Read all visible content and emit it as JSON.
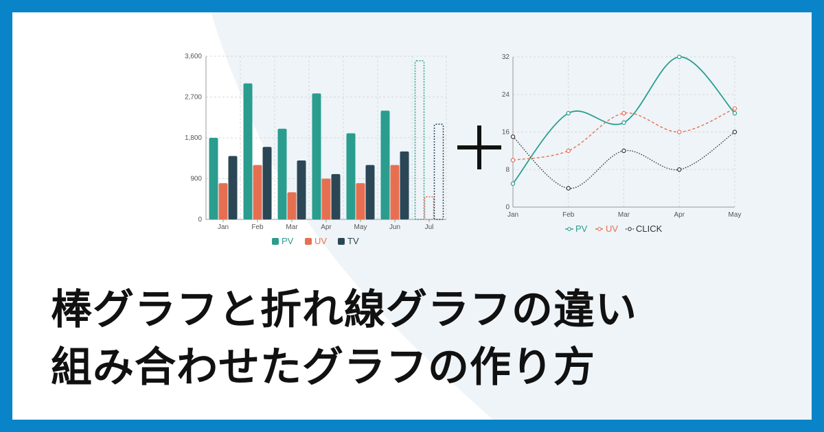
{
  "colors": {
    "frame": "#0a84c8",
    "background_tint": "#eef4f8",
    "pv": "#2a9d8f",
    "uv": "#e76f51",
    "tv": "#2b4756",
    "click": "#333333"
  },
  "headline": {
    "line1": "棒グラフと折れ線グラフの違い",
    "line2": "組み合わせたグラフの作り方"
  },
  "plus_symbol": "plus-icon",
  "chart_data": [
    {
      "type": "bar",
      "categories": [
        "Jan",
        "Feb",
        "Mar",
        "Apr",
        "May",
        "Jun",
        "Jul"
      ],
      "ylim": [
        0,
        3600
      ],
      "yticks": [
        "0",
        "900",
        "1,800",
        "2,700",
        "3,600"
      ],
      "grid": true,
      "legend_position": "bottom",
      "series": [
        {
          "name": "PV",
          "color": "#2a9d8f",
          "values": [
            1800,
            3000,
            2000,
            2780,
            1900,
            2400,
            3500
          ],
          "dashed_last": true
        },
        {
          "name": "UV",
          "color": "#e76f51",
          "values": [
            800,
            1200,
            600,
            900,
            800,
            1200,
            500
          ],
          "dashed_last": true
        },
        {
          "name": "TV",
          "color": "#2b4756",
          "values": [
            1400,
            1600,
            1300,
            1000,
            1200,
            1500,
            2100
          ],
          "dashed_last": true
        }
      ]
    },
    {
      "type": "line",
      "categories": [
        "Jan",
        "Feb",
        "Mar",
        "Apr",
        "May"
      ],
      "ylim": [
        0,
        32
      ],
      "yticks": [
        "0",
        "8",
        "16",
        "24",
        "32"
      ],
      "grid": true,
      "legend_position": "bottom",
      "series": [
        {
          "name": "PV",
          "color": "#2a9d8f",
          "style": "solid",
          "values": [
            5,
            20,
            18,
            32,
            20
          ]
        },
        {
          "name": "UV",
          "color": "#e76f51",
          "style": "dashed",
          "values": [
            10,
            12,
            20,
            16,
            21
          ]
        },
        {
          "name": "CLICK",
          "color": "#333333",
          "style": "dotted",
          "values": [
            15,
            4,
            12,
            8,
            16
          ]
        }
      ]
    }
  ]
}
